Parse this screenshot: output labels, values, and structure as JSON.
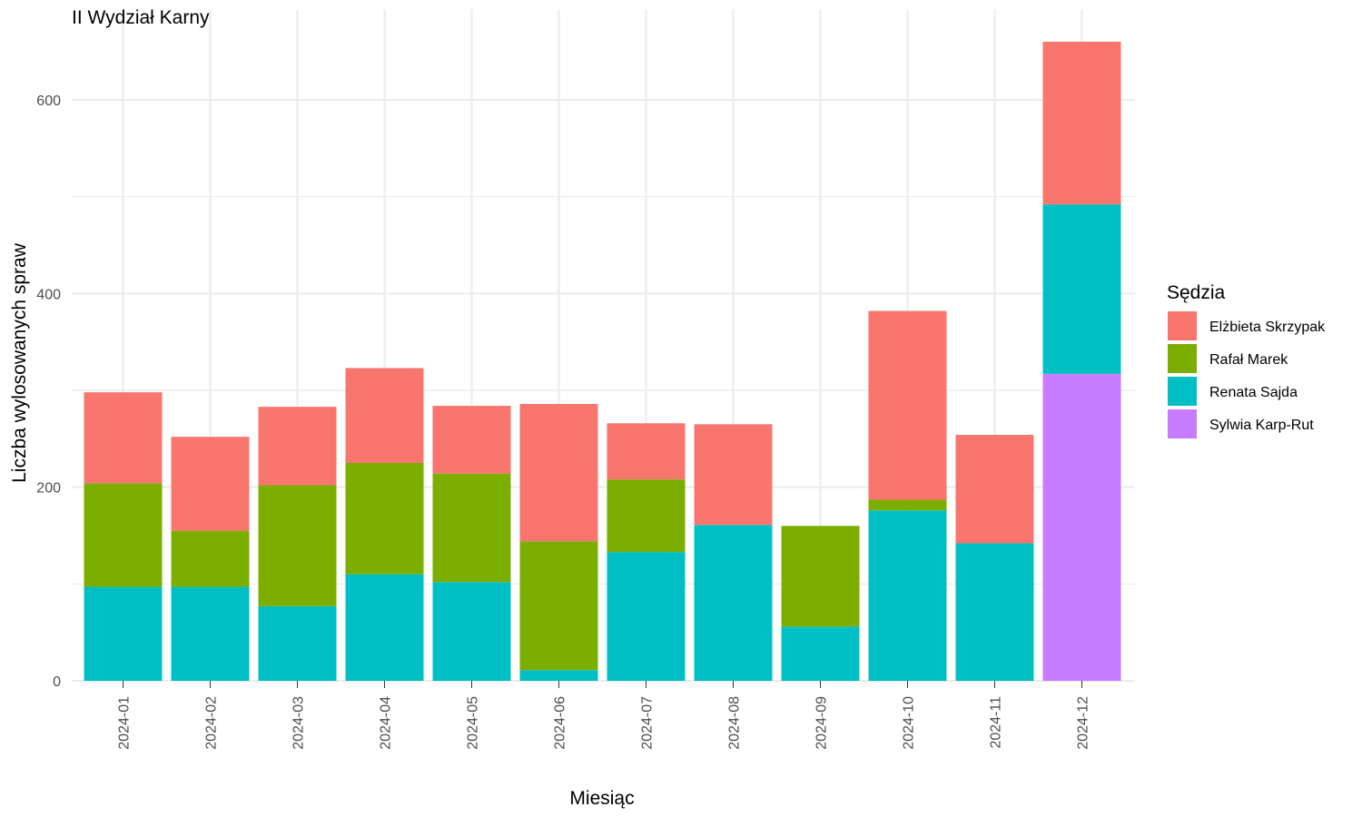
{
  "chart_data": {
    "type": "bar",
    "stacked": true,
    "title": "II Wydział Karny",
    "xlabel": "Miesiąc",
    "ylabel": "Liczba wylosowanych spraw",
    "ylim": [
      0,
      660
    ],
    "yticks": [
      0,
      200,
      400,
      600
    ],
    "grid": true,
    "legend_title": "Sędzia",
    "legend_position": "right",
    "categories": [
      "2024-01",
      "2024-02",
      "2024-03",
      "2024-04",
      "2024-05",
      "2024-06",
      "2024-07",
      "2024-08",
      "2024-09",
      "2024-10",
      "2024-11",
      "2024-12"
    ],
    "series": [
      {
        "name": "Sylwia Karp-Rut",
        "color": "#C77CFF",
        "values": [
          0,
          0,
          0,
          0,
          0,
          0,
          0,
          0,
          0,
          0,
          0,
          317
        ]
      },
      {
        "name": "Renata Sajda",
        "color": "#00BFC4",
        "values": [
          97,
          97,
          77,
          110,
          102,
          11,
          133,
          161,
          56,
          176,
          142,
          175
        ]
      },
      {
        "name": "Rafał Marek",
        "color": "#7CAE00",
        "values": [
          107,
          58,
          125,
          115,
          112,
          133,
          75,
          0,
          104,
          11,
          0,
          0
        ]
      },
      {
        "name": "Elżbieta Skrzypak",
        "color": "#F8766D",
        "values": [
          94,
          97,
          81,
          98,
          70,
          142,
          58,
          104,
          0,
          195,
          112,
          168
        ]
      }
    ],
    "legend_order": [
      "Elżbieta Skrzypak",
      "Rafał Marek",
      "Renata Sajda",
      "Sylwia Karp-Rut"
    ]
  }
}
